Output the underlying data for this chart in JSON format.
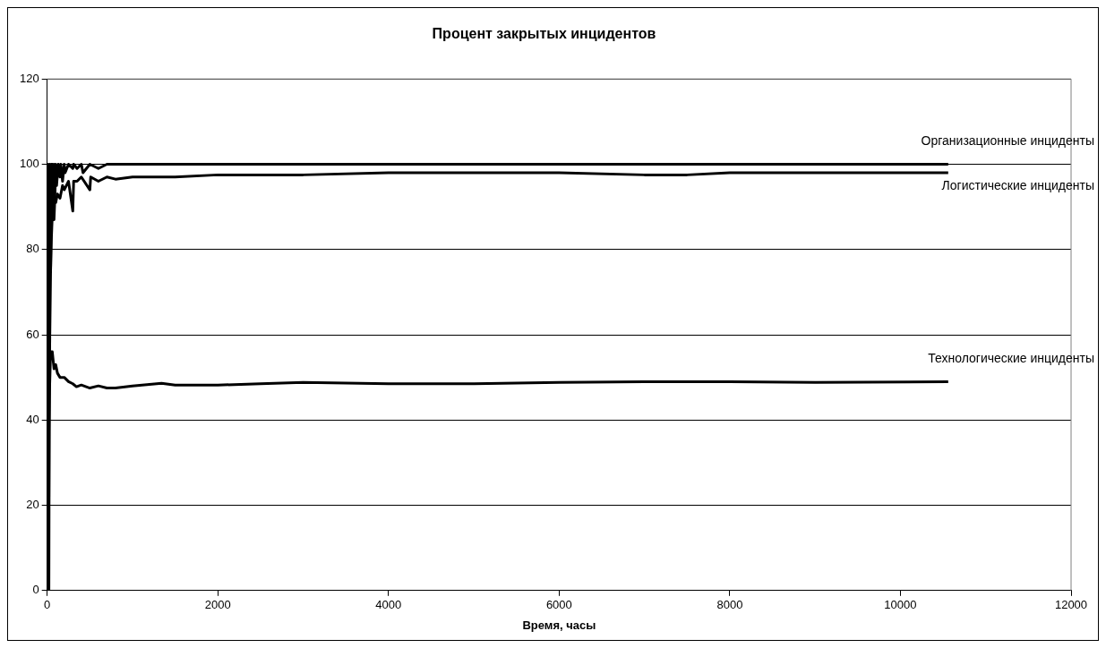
{
  "chart_data": {
    "type": "line",
    "title": "Процент закрытых инцидентов",
    "xlabel": "Время, часы",
    "xlim": [
      0,
      12000
    ],
    "xticks": [
      0,
      2000,
      4000,
      6000,
      8000,
      10000,
      12000
    ],
    "ylim": [
      0,
      120
    ],
    "yticks": [
      0,
      20,
      40,
      60,
      80,
      100,
      120
    ],
    "grid": "y",
    "marker": "none",
    "line_style": "solid",
    "series": [
      {
        "name": "Организационные инциденты",
        "color": "#000000",
        "x": [
          0,
          10,
          20,
          30,
          40,
          50,
          60,
          70,
          80,
          90,
          100,
          110,
          130,
          150,
          160,
          180,
          200,
          210,
          250,
          300,
          310,
          350,
          400,
          420,
          500,
          600,
          700,
          800,
          1000,
          1500,
          2000,
          3000,
          5000,
          8000,
          10560
        ],
        "values": [
          0,
          100,
          0,
          100,
          75,
          100,
          100,
          90,
          100,
          92,
          100,
          95,
          100,
          97,
          100,
          96,
          100,
          98,
          100,
          99,
          100,
          99,
          100,
          98,
          100,
          99,
          100,
          100,
          100,
          100,
          100,
          100,
          100,
          100,
          100
        ]
      },
      {
        "name": "Логистические инциденты",
        "color": "#000000",
        "x": [
          0,
          15,
          25,
          40,
          50,
          60,
          70,
          80,
          90,
          100,
          120,
          150,
          180,
          200,
          250,
          300,
          310,
          350,
          400,
          500,
          510,
          600,
          700,
          800,
          1000,
          1500,
          2000,
          2500,
          3000,
          4000,
          5000,
          6000,
          7000,
          7500,
          8000,
          9000,
          10560
        ],
        "values": [
          0,
          0,
          50,
          75,
          83,
          88,
          90,
          87,
          92,
          91,
          93,
          92,
          95,
          94,
          96,
          89,
          96,
          96,
          97,
          94,
          97,
          96,
          97,
          96.5,
          97,
          97,
          97.5,
          97.5,
          97.5,
          98,
          98,
          98,
          97.5,
          97.5,
          98,
          98,
          98
        ]
      },
      {
        "name": "Технологические инциденты",
        "color": "#000000",
        "x": [
          0,
          15,
          25,
          40,
          60,
          80,
          100,
          120,
          150,
          200,
          250,
          300,
          343,
          400,
          500,
          600,
          700,
          800,
          1000,
          1340,
          1500,
          2000,
          2500,
          3000,
          4000,
          5000,
          6000,
          7000,
          8000,
          9000,
          10560
        ],
        "values": [
          0,
          33,
          45,
          56,
          56,
          52,
          53,
          51,
          50,
          50,
          49,
          48.5,
          47.8,
          48.2,
          47.5,
          48,
          47.5,
          47.5,
          48,
          48.6,
          48.2,
          48.2,
          48.5,
          48.8,
          48.5,
          48.5,
          48.8,
          49,
          49,
          48.8,
          49
        ]
      }
    ]
  }
}
